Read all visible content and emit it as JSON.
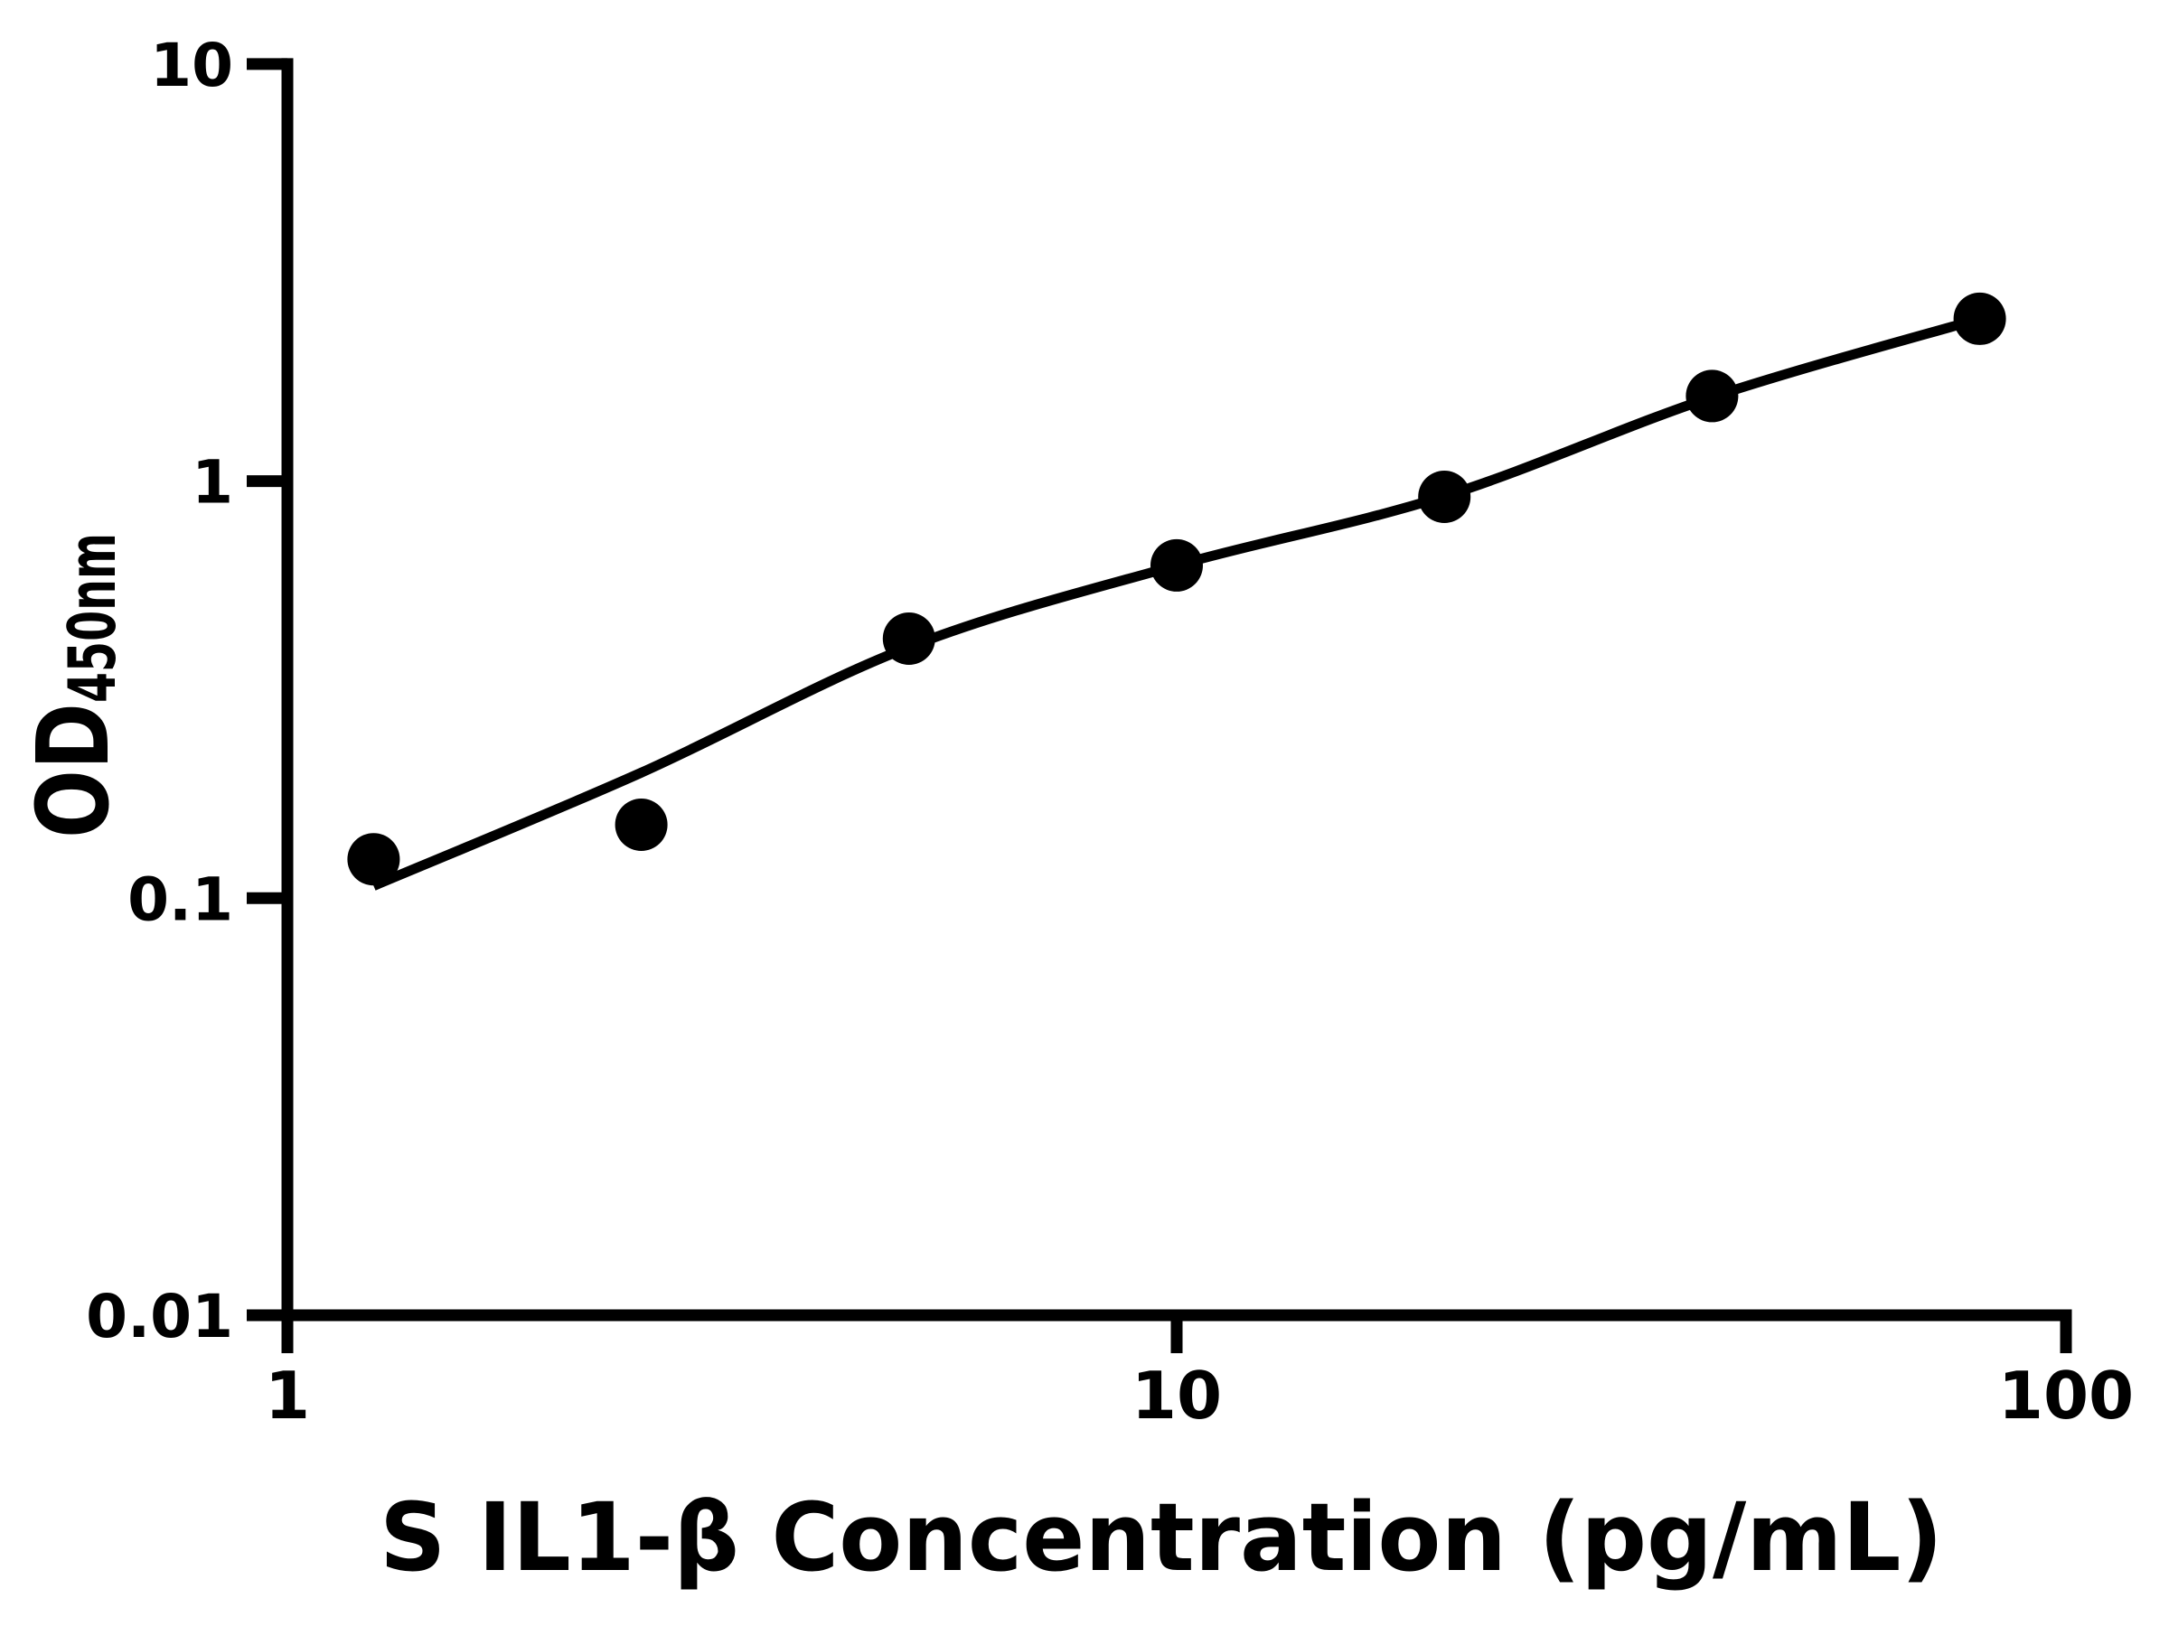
{
  "figure": {
    "background": "#ffffff",
    "foreground": "#000000"
  },
  "chart_data": {
    "type": "scatter",
    "title": "",
    "xlabel": "S IL1-β Concentration (pg/mL)",
    "ylabel": {
      "main": "OD",
      "subscript": "450nm"
    },
    "x_scale": "log",
    "y_scale": "log",
    "xlim": [
      1,
      100
    ],
    "ylim": [
      0.01,
      10
    ],
    "grid": false,
    "legend": false,
    "x_ticks": [
      {
        "v": 1,
        "label": "1"
      },
      {
        "v": 10,
        "label": "10"
      },
      {
        "v": 100,
        "label": "100"
      }
    ],
    "y_ticks": [
      {
        "v": 10,
        "label": "10"
      },
      {
        "v": 1,
        "label": "1"
      },
      {
        "v": 0.1,
        "label": "0.1"
      },
      {
        "v": 0.01,
        "label": "0.01"
      }
    ],
    "series": [
      {
        "name": "standard-data-points",
        "type": "scatter",
        "marker": "filled-circle",
        "color": "#000000",
        "x": [
          1.25,
          2.5,
          5,
          10,
          20,
          40,
          80
        ],
        "y": [
          0.124,
          0.15,
          0.419,
          0.628,
          0.917,
          1.6,
          2.45
        ]
      },
      {
        "name": "fitted-standard-curve",
        "type": "line",
        "color": "#000000",
        "x": [
          1.25,
          2.5,
          5,
          10,
          20,
          40,
          80
        ],
        "y": [
          0.107,
          0.2,
          0.4,
          0.628,
          0.92,
          1.59,
          2.45
        ]
      }
    ]
  }
}
